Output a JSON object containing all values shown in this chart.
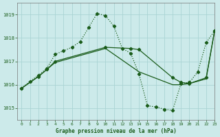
{
  "title": "Graphe pression niveau de la mer (hPa)",
  "background_color": "#cceaea",
  "grid_color": "#aad4d4",
  "line_color": "#1a5c1a",
  "xlim": [
    -0.5,
    23
  ],
  "ylim": [
    1014.5,
    1019.5
  ],
  "yticks": [
    1015,
    1016,
    1017,
    1018,
    1019
  ],
  "xticks": [
    0,
    1,
    2,
    3,
    4,
    5,
    6,
    7,
    8,
    9,
    10,
    11,
    12,
    13,
    14,
    15,
    16,
    17,
    18,
    19,
    20,
    21,
    22,
    23
  ],
  "series1_x": [
    0,
    1,
    2,
    3,
    4,
    5,
    6,
    7,
    8,
    9,
    10,
    11,
    12,
    13,
    14,
    15,
    16,
    17,
    18,
    19,
    20,
    21,
    22,
    23
  ],
  "series1_y": [
    1015.85,
    1016.15,
    1016.4,
    1016.7,
    1017.3,
    1017.45,
    1017.6,
    1017.85,
    1018.45,
    1019.05,
    1018.95,
    1018.5,
    1017.55,
    1017.35,
    1016.45,
    1015.1,
    1015.05,
    1014.95,
    1014.9,
    1016.05,
    1016.1,
    1016.55,
    1017.8,
    1018.3
  ],
  "series2_x": [
    0,
    2,
    3,
    4,
    10,
    13,
    14,
    18,
    19,
    20,
    22,
    23
  ],
  "series2_y": [
    1015.85,
    1016.35,
    1016.65,
    1017.0,
    1017.6,
    1017.55,
    1017.5,
    1016.3,
    1016.1,
    1016.05,
    1016.3,
    1018.3
  ],
  "series3_x": [
    0,
    2,
    3,
    4,
    10,
    14,
    18,
    19,
    20,
    22,
    23
  ],
  "series3_y": [
    1015.85,
    1016.35,
    1016.65,
    1016.95,
    1017.55,
    1016.55,
    1016.0,
    1016.0,
    1016.05,
    1016.25,
    1018.3
  ]
}
